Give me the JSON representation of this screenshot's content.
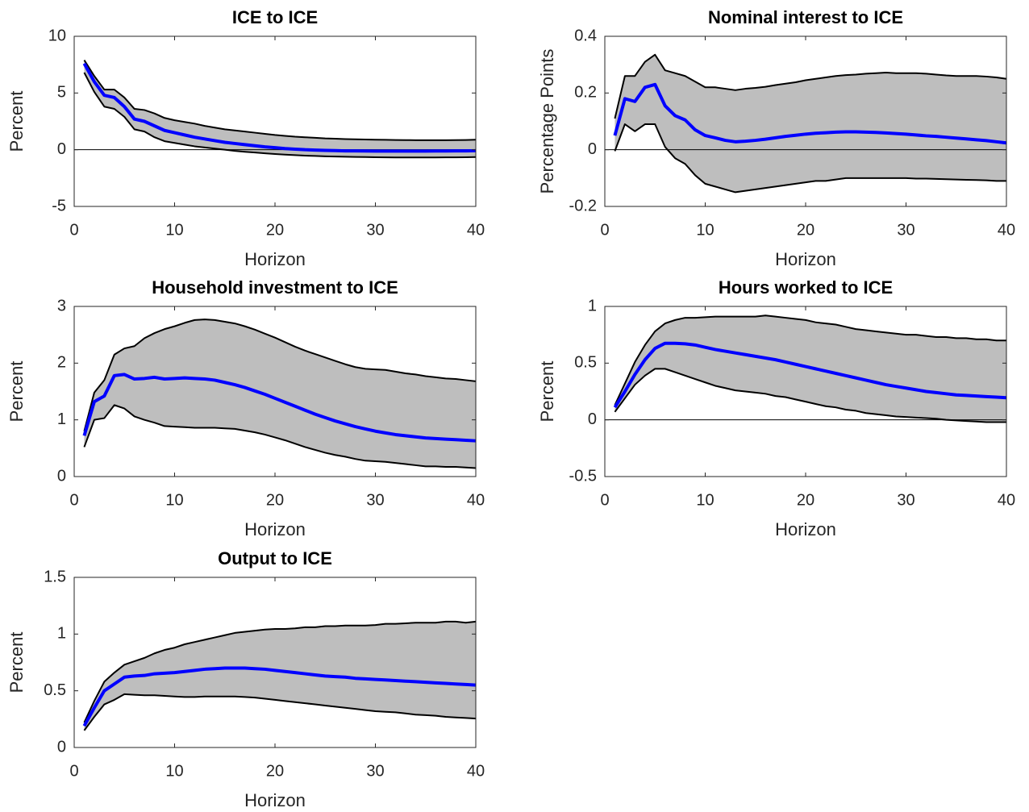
{
  "chart_data": [
    {
      "type": "band_line",
      "title": "ICE to ICE",
      "x_label": "Horizon",
      "y_label": "Percent",
      "x": [
        1,
        2,
        3,
        4,
        5,
        6,
        7,
        8,
        9,
        10,
        11,
        12,
        13,
        14,
        15,
        16,
        17,
        18,
        19,
        20,
        21,
        22,
        23,
        24,
        25,
        26,
        27,
        28,
        29,
        30,
        31,
        32,
        33,
        34,
        35,
        36,
        37,
        38,
        39,
        40
      ],
      "series": [
        {
          "color": "#000000",
          "values": [
            6.8,
            5.1,
            3.8,
            3.6,
            2.9,
            1.8,
            1.6,
            1.1,
            0.75,
            0.6,
            0.45,
            0.3,
            0.2,
            0.1,
            0.0,
            -0.1,
            -0.18,
            -0.25,
            -0.32,
            -0.38,
            -0.43,
            -0.48,
            -0.52,
            -0.55,
            -0.58,
            -0.6,
            -0.62,
            -0.64,
            -0.65,
            -0.66,
            -0.67,
            -0.68,
            -0.68,
            -0.68,
            -0.68,
            -0.68,
            -0.67,
            -0.67,
            -0.66,
            -0.65
          ]
        },
        {
          "color": "#000000",
          "values": [
            7.9,
            6.5,
            5.3,
            5.3,
            4.6,
            3.6,
            3.5,
            3.2,
            2.8,
            2.6,
            2.45,
            2.3,
            2.1,
            1.95,
            1.8,
            1.7,
            1.6,
            1.5,
            1.4,
            1.3,
            1.22,
            1.15,
            1.1,
            1.05,
            1.0,
            0.97,
            0.94,
            0.92,
            0.9,
            0.88,
            0.87,
            0.86,
            0.85,
            0.84,
            0.84,
            0.84,
            0.84,
            0.85,
            0.86,
            0.88
          ]
        },
        {
          "color": "#0000ff",
          "values": [
            7.6,
            6.0,
            4.8,
            4.6,
            3.8,
            2.7,
            2.5,
            2.1,
            1.7,
            1.5,
            1.3,
            1.1,
            0.95,
            0.8,
            0.65,
            0.55,
            0.45,
            0.35,
            0.25,
            0.18,
            0.1,
            0.05,
            0.0,
            -0.03,
            -0.06,
            -0.08,
            -0.1,
            -0.1,
            -0.11,
            -0.12,
            -0.12,
            -0.12,
            -0.12,
            -0.12,
            -0.12,
            -0.11,
            -0.11,
            -0.1,
            -0.1,
            -0.09
          ]
        }
      ],
      "band_color": "#bebebe",
      "zero_line": true,
      "xlim": [
        0,
        40
      ],
      "xticks": [
        0,
        10,
        20,
        30,
        40
      ],
      "ylim": [
        -5,
        10
      ],
      "yticks": [
        -5,
        0,
        5,
        10
      ]
    },
    {
      "type": "band_line",
      "title": "Nominal interest to ICE",
      "x_label": "Horizon",
      "y_label": "Percentage Points",
      "x": [
        1,
        2,
        3,
        4,
        5,
        6,
        7,
        8,
        9,
        10,
        11,
        12,
        13,
        14,
        15,
        16,
        17,
        18,
        19,
        20,
        21,
        22,
        23,
        24,
        25,
        26,
        27,
        28,
        29,
        30,
        31,
        32,
        33,
        34,
        35,
        36,
        37,
        38,
        39,
        40
      ],
      "series": [
        {
          "color": "#000000",
          "values": [
            -0.005,
            0.09,
            0.065,
            0.09,
            0.09,
            0.01,
            -0.03,
            -0.05,
            -0.09,
            -0.12,
            -0.13,
            -0.14,
            -0.15,
            -0.145,
            -0.14,
            -0.135,
            -0.13,
            -0.125,
            -0.12,
            -0.115,
            -0.11,
            -0.11,
            -0.105,
            -0.1,
            -0.1,
            -0.1,
            -0.1,
            -0.1,
            -0.1,
            -0.1,
            -0.102,
            -0.102,
            -0.103,
            -0.104,
            -0.105,
            -0.106,
            -0.107,
            -0.108,
            -0.11,
            -0.11
          ]
        },
        {
          "color": "#000000",
          "values": [
            0.11,
            0.26,
            0.26,
            0.31,
            0.335,
            0.28,
            0.27,
            0.26,
            0.24,
            0.22,
            0.22,
            0.215,
            0.21,
            0.215,
            0.218,
            0.222,
            0.228,
            0.233,
            0.238,
            0.245,
            0.25,
            0.255,
            0.26,
            0.263,
            0.265,
            0.268,
            0.27,
            0.272,
            0.27,
            0.27,
            0.27,
            0.268,
            0.265,
            0.262,
            0.26,
            0.26,
            0.26,
            0.258,
            0.255,
            0.25
          ]
        },
        {
          "color": "#0000ff",
          "values": [
            0.05,
            0.18,
            0.17,
            0.22,
            0.23,
            0.155,
            0.12,
            0.105,
            0.07,
            0.05,
            0.042,
            0.033,
            0.028,
            0.03,
            0.033,
            0.037,
            0.042,
            0.047,
            0.051,
            0.055,
            0.058,
            0.06,
            0.062,
            0.063,
            0.063,
            0.062,
            0.061,
            0.059,
            0.057,
            0.055,
            0.052,
            0.049,
            0.047,
            0.044,
            0.041,
            0.038,
            0.035,
            0.032,
            0.028,
            0.024
          ]
        }
      ],
      "band_color": "#bebebe",
      "zero_line": true,
      "xlim": [
        0,
        40
      ],
      "xticks": [
        0,
        10,
        20,
        30,
        40
      ],
      "ylim": [
        -0.2,
        0.4
      ],
      "yticks": [
        -0.2,
        0,
        0.2,
        0.4
      ]
    },
    {
      "type": "band_line",
      "title": "Household investment to ICE",
      "x_label": "Horizon",
      "y_label": "Percent",
      "x": [
        1,
        2,
        3,
        4,
        5,
        6,
        7,
        8,
        9,
        10,
        11,
        12,
        13,
        14,
        15,
        16,
        17,
        18,
        19,
        20,
        21,
        22,
        23,
        24,
        25,
        26,
        27,
        28,
        29,
        30,
        31,
        32,
        33,
        34,
        35,
        36,
        37,
        38,
        39,
        40
      ],
      "series": [
        {
          "color": "#000000",
          "values": [
            0.52,
            1.0,
            1.03,
            1.26,
            1.2,
            1.06,
            1.0,
            0.95,
            0.89,
            0.88,
            0.87,
            0.86,
            0.86,
            0.86,
            0.85,
            0.84,
            0.81,
            0.78,
            0.74,
            0.69,
            0.64,
            0.58,
            0.52,
            0.47,
            0.42,
            0.38,
            0.35,
            0.31,
            0.28,
            0.27,
            0.26,
            0.24,
            0.22,
            0.2,
            0.18,
            0.18,
            0.17,
            0.17,
            0.16,
            0.15
          ]
        },
        {
          "color": "#000000",
          "values": [
            0.8,
            1.48,
            1.7,
            2.15,
            2.26,
            2.3,
            2.44,
            2.53,
            2.6,
            2.65,
            2.71,
            2.76,
            2.77,
            2.76,
            2.73,
            2.7,
            2.65,
            2.59,
            2.52,
            2.45,
            2.37,
            2.29,
            2.22,
            2.16,
            2.1,
            2.04,
            1.98,
            1.93,
            1.9,
            1.89,
            1.88,
            1.85,
            1.82,
            1.8,
            1.77,
            1.75,
            1.73,
            1.72,
            1.7,
            1.68
          ]
        },
        {
          "color": "#0000ff",
          "values": [
            0.72,
            1.32,
            1.42,
            1.78,
            1.8,
            1.72,
            1.73,
            1.75,
            1.72,
            1.73,
            1.74,
            1.73,
            1.72,
            1.7,
            1.66,
            1.62,
            1.57,
            1.51,
            1.45,
            1.38,
            1.31,
            1.24,
            1.17,
            1.1,
            1.04,
            0.98,
            0.93,
            0.88,
            0.84,
            0.8,
            0.77,
            0.74,
            0.72,
            0.7,
            0.68,
            0.67,
            0.66,
            0.65,
            0.64,
            0.63
          ]
        }
      ],
      "band_color": "#bebebe",
      "zero_line": false,
      "xlim": [
        0,
        40
      ],
      "xticks": [
        0,
        10,
        20,
        30,
        40
      ],
      "ylim": [
        0,
        3
      ],
      "yticks": [
        0,
        1,
        2,
        3
      ]
    },
    {
      "type": "band_line",
      "title": "Hours worked to ICE",
      "x_label": "Horizon",
      "y_label": "Percent",
      "x": [
        1,
        2,
        3,
        4,
        5,
        6,
        7,
        8,
        9,
        10,
        11,
        12,
        13,
        14,
        15,
        16,
        17,
        18,
        19,
        20,
        21,
        22,
        23,
        24,
        25,
        26,
        27,
        28,
        29,
        30,
        31,
        32,
        33,
        34,
        35,
        36,
        37,
        38,
        39,
        40
      ],
      "series": [
        {
          "color": "#000000",
          "values": [
            0.07,
            0.19,
            0.31,
            0.39,
            0.45,
            0.45,
            0.42,
            0.39,
            0.36,
            0.33,
            0.3,
            0.28,
            0.26,
            0.25,
            0.24,
            0.23,
            0.21,
            0.2,
            0.18,
            0.16,
            0.14,
            0.12,
            0.11,
            0.09,
            0.08,
            0.06,
            0.05,
            0.04,
            0.03,
            0.025,
            0.02,
            0.015,
            0.01,
            0.0,
            -0.005,
            -0.01,
            -0.015,
            -0.02,
            -0.02,
            -0.02
          ]
        },
        {
          "color": "#000000",
          "values": [
            0.13,
            0.32,
            0.51,
            0.66,
            0.78,
            0.85,
            0.88,
            0.9,
            0.9,
            0.905,
            0.91,
            0.91,
            0.91,
            0.91,
            0.91,
            0.92,
            0.91,
            0.9,
            0.89,
            0.88,
            0.86,
            0.85,
            0.84,
            0.82,
            0.8,
            0.79,
            0.78,
            0.77,
            0.76,
            0.75,
            0.75,
            0.74,
            0.73,
            0.73,
            0.72,
            0.72,
            0.71,
            0.71,
            0.7,
            0.7
          ]
        },
        {
          "color": "#0000ff",
          "values": [
            0.11,
            0.25,
            0.4,
            0.53,
            0.63,
            0.675,
            0.675,
            0.67,
            0.66,
            0.64,
            0.62,
            0.605,
            0.59,
            0.575,
            0.56,
            0.545,
            0.53,
            0.51,
            0.49,
            0.47,
            0.45,
            0.43,
            0.41,
            0.39,
            0.37,
            0.35,
            0.33,
            0.31,
            0.295,
            0.28,
            0.265,
            0.25,
            0.24,
            0.23,
            0.22,
            0.215,
            0.21,
            0.205,
            0.2,
            0.195
          ]
        }
      ],
      "band_color": "#bebebe",
      "zero_line": true,
      "xlim": [
        0,
        40
      ],
      "xticks": [
        0,
        10,
        20,
        30,
        40
      ],
      "ylim": [
        -0.5,
        1
      ],
      "yticks": [
        -0.5,
        0,
        0.5,
        1
      ]
    },
    {
      "type": "band_line",
      "title": "Output to ICE",
      "x_label": "Horizon",
      "y_label": "Percent",
      "x": [
        1,
        2,
        3,
        4,
        5,
        6,
        7,
        8,
        9,
        10,
        11,
        12,
        13,
        14,
        15,
        16,
        17,
        18,
        19,
        20,
        21,
        22,
        23,
        24,
        25,
        26,
        27,
        28,
        29,
        30,
        31,
        32,
        33,
        34,
        35,
        36,
        37,
        38,
        39,
        40
      ],
      "series": [
        {
          "color": "#000000",
          "values": [
            0.15,
            0.27,
            0.38,
            0.42,
            0.47,
            0.465,
            0.46,
            0.46,
            0.455,
            0.45,
            0.445,
            0.445,
            0.45,
            0.45,
            0.45,
            0.45,
            0.445,
            0.44,
            0.43,
            0.42,
            0.41,
            0.4,
            0.39,
            0.38,
            0.37,
            0.36,
            0.35,
            0.34,
            0.33,
            0.32,
            0.315,
            0.31,
            0.3,
            0.29,
            0.285,
            0.28,
            0.27,
            0.265,
            0.26,
            0.255
          ]
        },
        {
          "color": "#000000",
          "values": [
            0.22,
            0.41,
            0.58,
            0.66,
            0.73,
            0.76,
            0.79,
            0.83,
            0.86,
            0.88,
            0.91,
            0.93,
            0.95,
            0.97,
            0.99,
            1.01,
            1.02,
            1.03,
            1.04,
            1.045,
            1.045,
            1.05,
            1.06,
            1.06,
            1.07,
            1.07,
            1.075,
            1.075,
            1.075,
            1.08,
            1.09,
            1.09,
            1.095,
            1.1,
            1.1,
            1.1,
            1.11,
            1.11,
            1.1,
            1.11
          ]
        },
        {
          "color": "#0000ff",
          "values": [
            0.19,
            0.35,
            0.5,
            0.56,
            0.62,
            0.63,
            0.635,
            0.65,
            0.655,
            0.66,
            0.67,
            0.68,
            0.69,
            0.695,
            0.7,
            0.7,
            0.7,
            0.695,
            0.69,
            0.68,
            0.67,
            0.66,
            0.65,
            0.64,
            0.63,
            0.625,
            0.62,
            0.61,
            0.605,
            0.6,
            0.595,
            0.59,
            0.585,
            0.58,
            0.575,
            0.57,
            0.565,
            0.56,
            0.555,
            0.55
          ]
        }
      ],
      "band_color": "#bebebe",
      "zero_line": false,
      "xlim": [
        0,
        40
      ],
      "xticks": [
        0,
        10,
        20,
        30,
        40
      ],
      "ylim": [
        0,
        1.5
      ],
      "yticks": [
        0,
        0.5,
        1,
        1.5
      ]
    }
  ]
}
